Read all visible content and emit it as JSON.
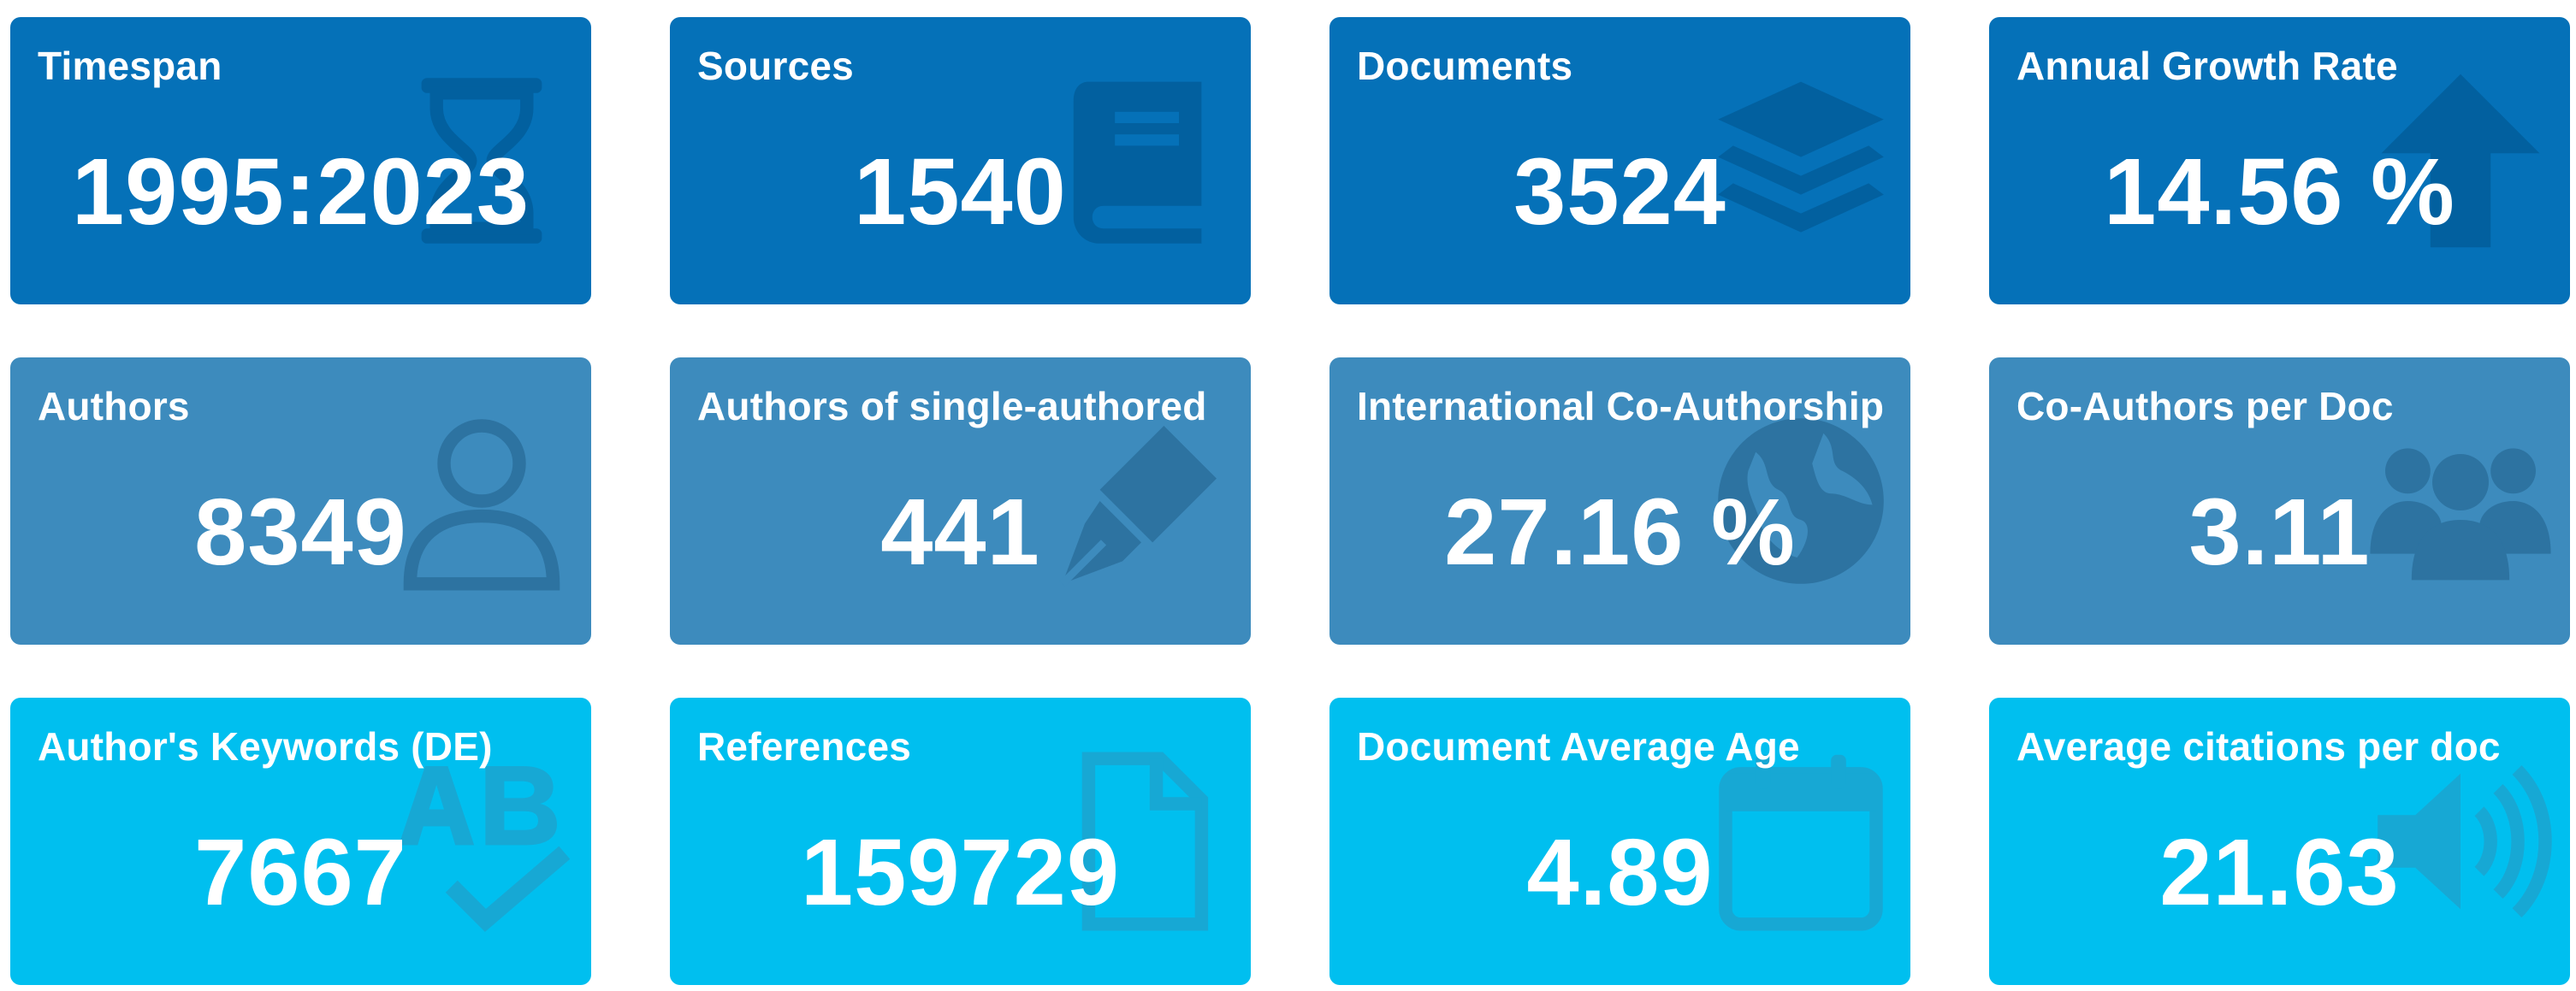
{
  "cards": [
    {
      "label": "Timespan",
      "value": "1995:2023",
      "icon": "hourglass-icon"
    },
    {
      "label": "Sources",
      "value": "1540",
      "icon": "book-icon"
    },
    {
      "label": "Documents",
      "value": "3524",
      "icon": "layers-icon"
    },
    {
      "label": "Annual Growth Rate",
      "value": "14.56 %",
      "icon": "arrow-up-icon"
    },
    {
      "label": "Authors",
      "value": "8349",
      "icon": "user-icon"
    },
    {
      "label": "Authors of single-authored",
      "value": "441",
      "icon": "pen-nib-icon"
    },
    {
      "label": "International Co-Authorship",
      "value": "27.16 %",
      "icon": "globe-icon"
    },
    {
      "label": "Co-Authors per Doc",
      "value": "3.11",
      "icon": "users-icon"
    },
    {
      "label": "Author's Keywords (DE)",
      "value": "7667",
      "icon": "spell-check-icon"
    },
    {
      "label": "References",
      "value": "159729",
      "icon": "file-icon"
    },
    {
      "label": "Document Average Age",
      "value": "4.89",
      "icon": "calendar-icon"
    },
    {
      "label": "Average citations per doc",
      "value": "21.63",
      "icon": "volume-icon"
    }
  ],
  "colors": {
    "row_1": "#0571b8",
    "row_2": "#3d8bbd",
    "row_3": "#00bfef",
    "text": "#ffffff"
  }
}
